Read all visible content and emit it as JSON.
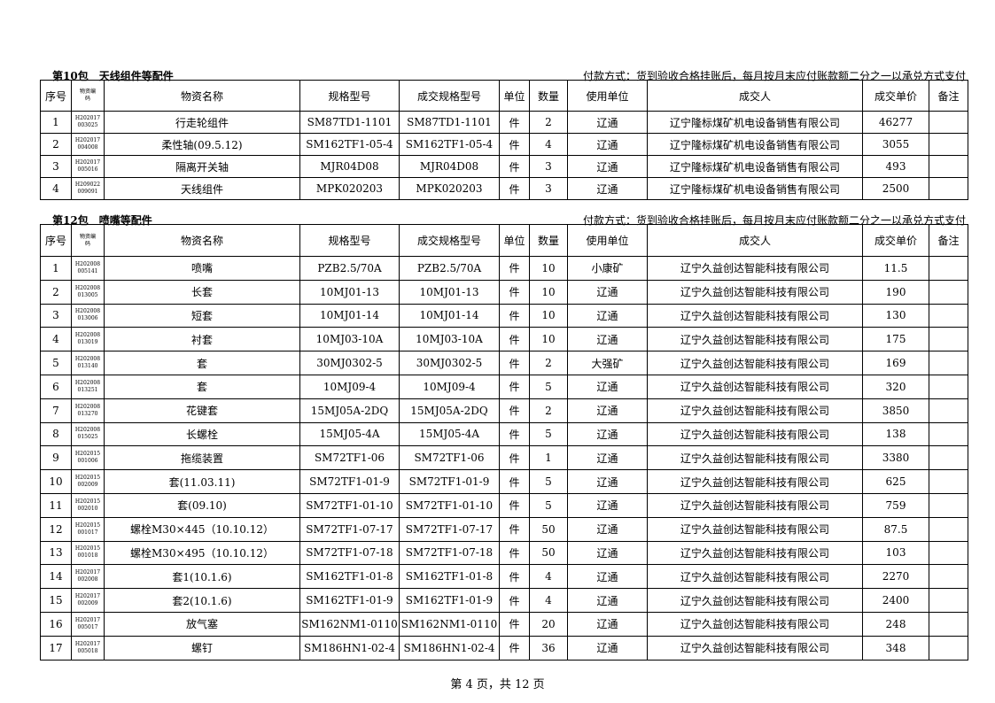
{
  "sections": [
    {
      "title": "第10包　天线组件等配件",
      "payment": "付款方式：货到验收合格挂账后，每月按月末应付账款额二分之一以承兑方式支付",
      "header": [
        "序号",
        [
          "物资编",
          "码"
        ],
        "物资名称",
        "规格型号",
        "成交规格型号",
        "单位",
        "数量",
        "使用单位",
        "成交人",
        "成交单价",
        "备注"
      ],
      "rows": [
        [
          "1",
          [
            "H202017",
            "003025"
          ],
          "行走轮组件",
          "SM87TD1-1101",
          "SM87TD1-1101",
          "件",
          "2",
          "辽通",
          "辽宁隆标煤矿机电设备销售有限公司",
          "46277"
        ],
        [
          "2",
          [
            "H202017",
            "004008"
          ],
          "柔性轴(09.5.12)",
          "SM162TF1-05-4",
          "SM162TF1-05-4",
          "件",
          "4",
          "辽通",
          "辽宁隆标煤矿机电设备销售有限公司",
          "3055"
        ],
        [
          "3",
          [
            "H202017",
            "005016"
          ],
          "隔离开关轴",
          "MJR04D08",
          "MJR04D08",
          "件",
          "3",
          "辽通",
          "辽宁隆标煤矿机电设备销售有限公司",
          "493"
        ],
        [
          "4",
          [
            "H209022",
            "009091"
          ],
          "天线组件",
          "MPK020203",
          "MPK020203",
          "件",
          "3",
          "辽通",
          "辽宁隆标煤矿机电设备销售有限公司",
          "2500"
        ]
      ]
    },
    {
      "title": "第12包　喷嘴等配件",
      "payment": "付款方式：货到验收合格挂账后，每月按月末应付账款额二分之一以承兑方式支付",
      "header": [
        "序号",
        [
          "物资编",
          "码"
        ],
        "物资名称",
        "规格型号",
        "成交规格型号",
        "单位",
        "数量",
        "使用单位",
        "成交人",
        "成交单价",
        "备注"
      ],
      "rows": [
        [
          "1",
          [
            "H202008",
            "005141"
          ],
          "喷嘴",
          "PZB2.5/70A",
          "PZB2.5/70A",
          "件",
          "10",
          "小康矿",
          "辽宁久益创达智能科技有限公司",
          "11.5"
        ],
        [
          "2",
          [
            "H202008",
            "013005"
          ],
          "长套",
          "10MJ01-13",
          "10MJ01-13",
          "件",
          "10",
          "辽通",
          "辽宁久益创达智能科技有限公司",
          "190"
        ],
        [
          "3",
          [
            "H202008",
            "013006"
          ],
          "短套",
          "10MJ01-14",
          "10MJ01-14",
          "件",
          "10",
          "辽通",
          "辽宁久益创达智能科技有限公司",
          "130"
        ],
        [
          "4",
          [
            "H202008",
            "013019"
          ],
          "衬套",
          "10MJ03-10A",
          "10MJ03-10A",
          "件",
          "10",
          "辽通",
          "辽宁久益创达智能科技有限公司",
          "175"
        ],
        [
          "5",
          [
            "H202008",
            "013140"
          ],
          "套",
          "30MJ0302-5",
          "30MJ0302-5",
          "件",
          "2",
          "大强矿",
          "辽宁久益创达智能科技有限公司",
          "169"
        ],
        [
          "6",
          [
            "H202008",
            "013251"
          ],
          "套",
          "10MJ09-4",
          "10MJ09-4",
          "件",
          "5",
          "辽通",
          "辽宁久益创达智能科技有限公司",
          "320"
        ],
        [
          "7",
          [
            "H202008",
            "013270"
          ],
          "花键套",
          "15MJ05A-2DQ",
          "15MJ05A-2DQ",
          "件",
          "2",
          "辽通",
          "辽宁久益创达智能科技有限公司",
          "3850"
        ],
        [
          "8",
          [
            "H202008",
            "015025"
          ],
          "长螺栓",
          "15MJ05-4A",
          "15MJ05-4A",
          "件",
          "5",
          "辽通",
          "辽宁久益创达智能科技有限公司",
          "138"
        ],
        [
          "9",
          [
            "H202015",
            "001006"
          ],
          "拖缆装置",
          "SM72TF1-06",
          "SM72TF1-06",
          "件",
          "1",
          "辽通",
          "辽宁久益创达智能科技有限公司",
          "3380"
        ],
        [
          "10",
          [
            "H202015",
            "002009"
          ],
          "套(11.03.11)",
          "SM72TF1-01-9",
          "SM72TF1-01-9",
          "件",
          "5",
          "辽通",
          "辽宁久益创达智能科技有限公司",
          "625"
        ],
        [
          "11",
          [
            "H202015",
            "002010"
          ],
          "套(09.10)",
          "SM72TF1-01-10",
          "SM72TF1-01-10",
          "件",
          "5",
          "辽通",
          "辽宁久益创达智能科技有限公司",
          "759"
        ],
        [
          "12",
          [
            "H202015",
            "001017"
          ],
          "螺栓M30×445（10.10.12）",
          "SM72TF1-07-17",
          "SM72TF1-07-17",
          "件",
          "50",
          "辽通",
          "辽宁久益创达智能科技有限公司",
          "87.5"
        ],
        [
          "13",
          [
            "H202015",
            "001018"
          ],
          "螺栓M30×495（10.10.12）",
          "SM72TF1-07-18",
          "SM72TF1-07-18",
          "件",
          "50",
          "辽通",
          "辽宁久益创达智能科技有限公司",
          "103"
        ],
        [
          "14",
          [
            "H202017",
            "002008"
          ],
          "套1(10.1.6)",
          "SM162TF1-01-8",
          "SM162TF1-01-8",
          "件",
          "4",
          "辽通",
          "辽宁久益创达智能科技有限公司",
          "2270"
        ],
        [
          "15",
          [
            "H202017",
            "002009"
          ],
          "套2(10.1.6)",
          "SM162TF1-01-9",
          "SM162TF1-01-9",
          "件",
          "4",
          "辽通",
          "辽宁久益创达智能科技有限公司",
          "2400"
        ],
        [
          "16",
          [
            "H202017",
            "005017"
          ],
          "放气塞",
          "SM162NM1-0110",
          "SM162NM1-0110",
          "件",
          "20",
          "辽通",
          "辽宁久益创达智能科技有限公司",
          "248"
        ],
        [
          "17",
          [
            "H202017",
            "005018"
          ],
          "螺钉",
          "SM186HN1-02-4",
          "SM186HN1-02-4",
          "件",
          "36",
          "辽通",
          "辽宁久益创达智能科技有限公司",
          "348"
        ]
      ]
    }
  ],
  "footer": "第 4 页，共 12 页"
}
